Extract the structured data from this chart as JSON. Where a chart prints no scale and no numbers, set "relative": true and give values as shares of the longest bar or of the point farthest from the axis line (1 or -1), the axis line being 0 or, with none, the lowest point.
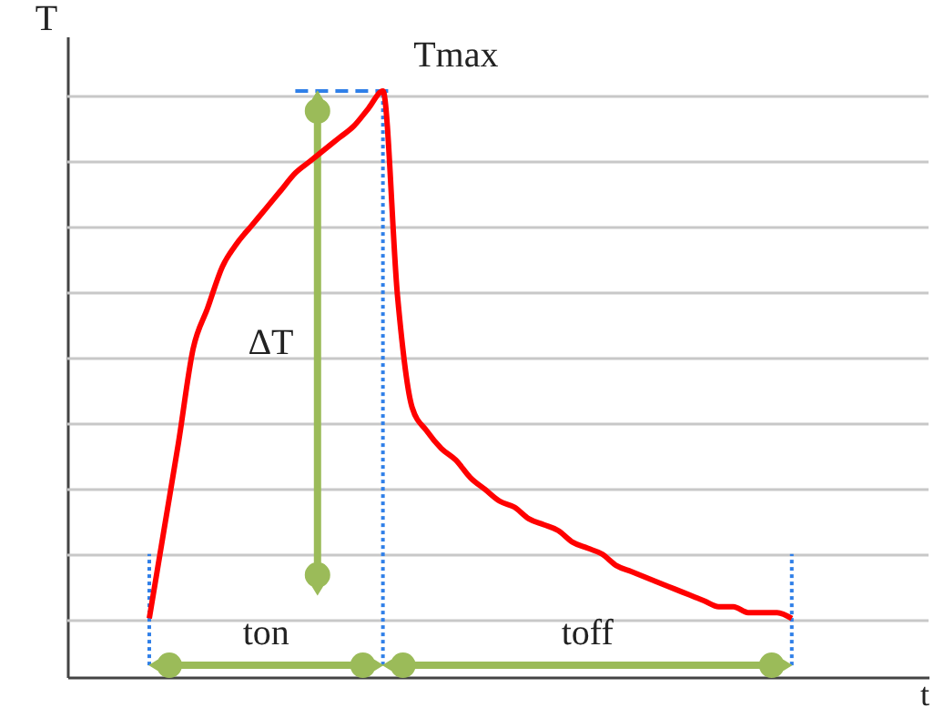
{
  "chart_data": {
    "type": "line",
    "relative": true,
    "xlabel": "t",
    "ylabel": "T",
    "grid": "y",
    "marker": "none",
    "line_style": "solid",
    "categories": [
      null,
      null,
      null,
      null,
      null,
      null,
      null,
      null,
      null,
      null,
      null,
      null,
      null,
      null,
      null,
      null,
      null,
      null,
      null,
      null,
      null,
      null,
      null,
      null,
      null,
      null,
      null,
      null,
      null,
      null,
      null,
      null,
      null,
      null,
      null,
      null,
      null,
      null,
      null,
      null,
      null,
      null,
      null,
      null,
      null
    ],
    "series": [
      {
        "color": "#ff0000",
        "values": [
          0.1,
          0.25,
          0.4,
          0.56,
          0.63,
          0.7,
          0.74,
          0.77,
          0.8,
          0.83,
          0.86,
          0.88,
          0.9,
          0.92,
          0.94,
          0.97,
          1,
          0.65,
          0.46,
          0.42,
          0.39,
          0.37,
          0.34,
          0.32,
          0.3,
          0.29,
          0.27,
          0.26,
          0.25,
          0.23,
          0.22,
          0.21,
          0.19,
          0.18,
          0.17,
          0.16,
          0.15,
          0.14,
          0.13,
          0.12,
          0.12,
          0.11,
          0.11,
          0.11,
          0.1
        ]
      }
    ],
    "annotations": [
      "Tmax",
      "ΔT",
      "ton",
      "toff"
    ]
  }
}
